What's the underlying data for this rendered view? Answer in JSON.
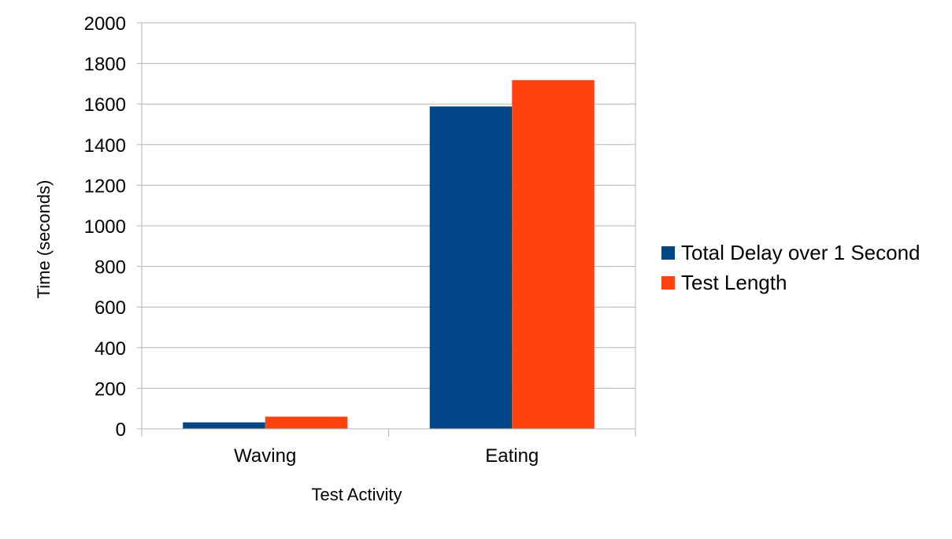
{
  "chart_data": {
    "type": "bar",
    "title": "",
    "xlabel": "Test Activity",
    "ylabel": "Time (seconds)",
    "categories": [
      "Waving",
      "Eating"
    ],
    "series": [
      {
        "name": "Total Delay over 1 Second",
        "color": "#004586",
        "values": [
          32,
          1588
        ]
      },
      {
        "name": "Test Length",
        "color": "#ff420e",
        "values": [
          60,
          1718
        ]
      }
    ],
    "ylim": [
      0,
      2000
    ],
    "yticks": [
      0,
      200,
      400,
      600,
      800,
      1000,
      1200,
      1400,
      1600,
      1800,
      2000
    ],
    "grid": true,
    "legend_position": "right"
  }
}
